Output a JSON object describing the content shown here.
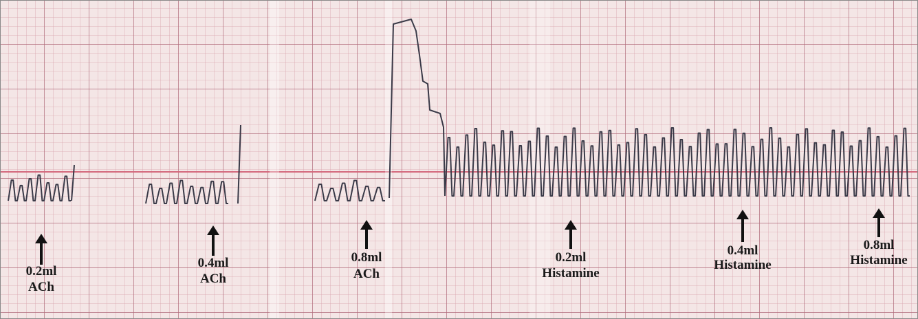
{
  "annotations": [
    {
      "dose": "0.2ml",
      "drug": "ACh"
    },
    {
      "dose": "0.4ml",
      "drug": "ACh"
    },
    {
      "dose": "0.8ml",
      "drug": "ACh"
    },
    {
      "dose": "0.2ml",
      "drug": "Histamine"
    },
    {
      "dose": "0.4ml",
      "drug": "Histamine"
    },
    {
      "dose": "0.8ml",
      "drug": "Histamine"
    }
  ]
}
